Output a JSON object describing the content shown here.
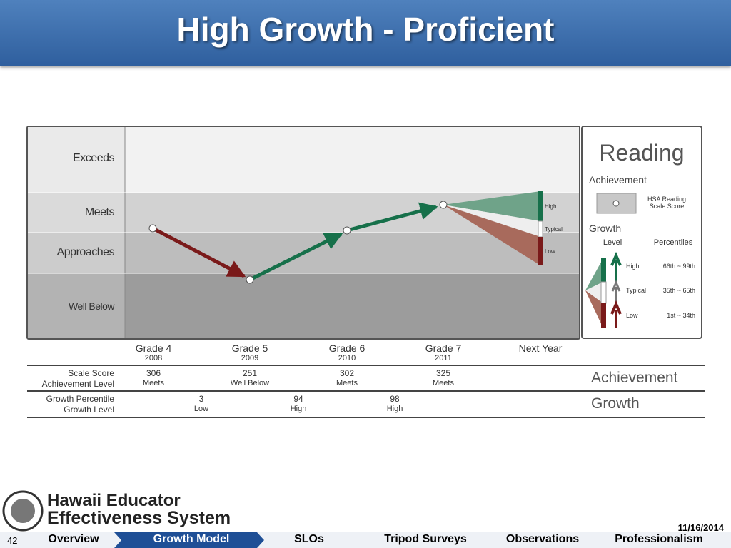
{
  "title": "High Growth - Proficient",
  "chart": {
    "bands": [
      "Exceeds",
      "Meets",
      "Approaches",
      "Well Below"
    ],
    "x_labels": [
      {
        "grade": "Grade 4",
        "year": "2008"
      },
      {
        "grade": "Grade 5",
        "year": "2009"
      },
      {
        "grade": "Grade 6",
        "year": "2010"
      },
      {
        "grade": "Grade 7",
        "year": "2011"
      }
    ],
    "next_year": "Next Year",
    "fan_labels": [
      "High",
      "Typical",
      "Low"
    ],
    "legend": {
      "title": "Reading",
      "achievement": "Achievement",
      "marker_label": [
        "HSA Reading",
        "Scale Score"
      ],
      "growth": "Growth",
      "level": "Level",
      "percentiles": "Percentiles",
      "levels": [
        {
          "name": "High",
          "range": "66th ~ 99th"
        },
        {
          "name": "Typical",
          "range": "35th ~ 65th"
        },
        {
          "name": "Low",
          "range": "1st ~ 34th"
        }
      ]
    }
  },
  "table": {
    "rows": [
      {
        "labels": [
          "Scale Score",
          "Achievement Level"
        ],
        "side": "Achievement",
        "cells": [
          {
            "value": 306,
            "level": "Meets"
          },
          {
            "value": 251,
            "level": "Well Below"
          },
          {
            "value": 302,
            "level": "Meets"
          },
          {
            "value": 325,
            "level": "Meets"
          }
        ]
      },
      {
        "labels": [
          "Growth Percentile",
          "Growth Level"
        ],
        "side": "Growth",
        "cells": [
          {
            "value": 3,
            "level": "Low"
          },
          {
            "value": 94,
            "level": "High"
          },
          {
            "value": 98,
            "level": "High"
          }
        ]
      }
    ]
  },
  "footer": {
    "org": [
      "Hawaii Educator",
      "Effectiveness System"
    ],
    "date": "11/16/2014",
    "page": "42",
    "nav": [
      "Overview",
      "Growth Model",
      "SLOs",
      "Tripod Surveys",
      "Observations",
      "Professionalism"
    ]
  }
}
